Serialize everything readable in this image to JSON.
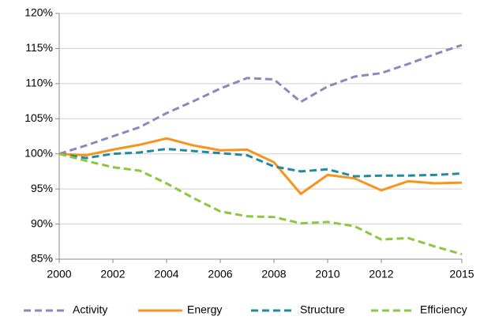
{
  "chart_data": {
    "type": "line",
    "x": [
      2000,
      2001,
      2002,
      2003,
      2004,
      2005,
      2006,
      2007,
      2008,
      2009,
      2010,
      2011,
      2012,
      2013,
      2014,
      2015
    ],
    "series": [
      {
        "name": "Activity",
        "color": "#8e87bd",
        "dashed": true,
        "values": [
          100,
          101.2,
          102.5,
          103.8,
          105.8,
          107.5,
          109.3,
          110.8,
          110.6,
          107.4,
          109.6,
          111,
          111.5,
          112.8,
          114.2,
          115.5
        ]
      },
      {
        "name": "Energy",
        "color": "#f7941d",
        "dashed": false,
        "values": [
          100,
          99.8,
          100.6,
          101.3,
          102.2,
          101.2,
          100.5,
          100.6,
          98.8,
          94.3,
          97,
          96.5,
          94.8,
          96.1,
          95.8,
          95.9
        ]
      },
      {
        "name": "Structure",
        "color": "#1f8ba0",
        "dashed": true,
        "values": [
          100,
          99.4,
          100,
          100.2,
          100.7,
          100.4,
          100.1,
          99.8,
          98.2,
          97.5,
          97.8,
          96.8,
          96.9,
          96.9,
          97,
          97.2
        ]
      },
      {
        "name": "Efficiency",
        "color": "#8dc63f",
        "dashed": true,
        "values": [
          100,
          99,
          98.1,
          97.6,
          95.8,
          93.7,
          91.8,
          91.1,
          91,
          90.1,
          90.3,
          89.7,
          87.8,
          88,
          86.8,
          85.7
        ]
      }
    ],
    "xlim": [
      2000,
      2015
    ],
    "xticks": [
      2000,
      2002,
      2004,
      2006,
      2008,
      2010,
      2012,
      2015
    ],
    "ylim": [
      85,
      120
    ],
    "yticks": [
      {
        "value": 85,
        "label": "85%"
      },
      {
        "value": 90,
        "label": "90%"
      },
      {
        "value": 95,
        "label": "95%"
      },
      {
        "value": 100,
        "label": "100%"
      },
      {
        "value": 105,
        "label": "105%"
      },
      {
        "value": 110,
        "label": "110%"
      },
      {
        "value": 115,
        "label": "115%"
      },
      {
        "value": 120,
        "label": "120%"
      }
    ],
    "grid": true,
    "legend": "bottom"
  }
}
